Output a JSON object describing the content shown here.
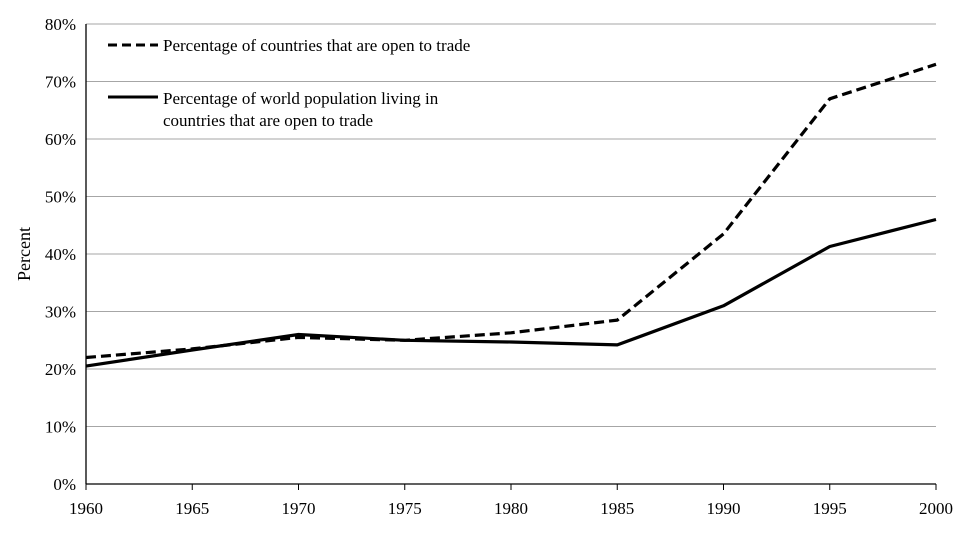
{
  "chart_data": {
    "type": "line",
    "title": "",
    "xlabel": "",
    "ylabel": "Percent",
    "xlim": [
      1960,
      2000
    ],
    "ylim": [
      0,
      80
    ],
    "x_ticks": [
      "1960",
      "1965",
      "1970",
      "1975",
      "1980",
      "1985",
      "1990",
      "1995",
      "2000"
    ],
    "y_ticks": [
      "0%",
      "10%",
      "20%",
      "30%",
      "40%",
      "50%",
      "60%",
      "70%",
      "80%"
    ],
    "grid": "horizontal",
    "legend_position": "top-left",
    "series": [
      {
        "name": "Percentage of countries that are open to trade",
        "legend_lines": [
          "Percentage of countries that are open to trade"
        ],
        "style": "dashed",
        "color": "#000000",
        "x": [
          1960,
          1965,
          1970,
          1975,
          1980,
          1985,
          1990,
          1995,
          2000
        ],
        "values": [
          22,
          23.5,
          25.5,
          25,
          26.3,
          28.5,
          43.5,
          67,
          73
        ]
      },
      {
        "name": "Percentage of world population living in countries that are open to trade",
        "legend_lines": [
          "Percentage of world population living in",
          "countries that are open to trade"
        ],
        "style": "solid",
        "color": "#000000",
        "x": [
          1960,
          1965,
          1970,
          1975,
          1980,
          1985,
          1990,
          1995,
          2000
        ],
        "values": [
          20.5,
          23.3,
          26,
          25,
          24.7,
          24.2,
          31,
          41.3,
          46
        ]
      }
    ]
  }
}
